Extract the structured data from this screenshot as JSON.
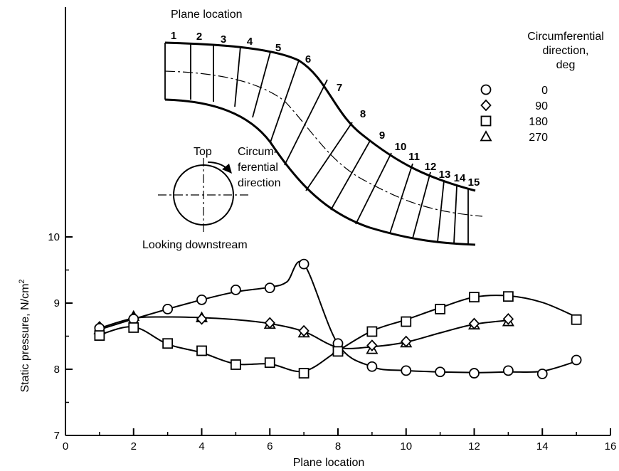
{
  "chart_data": {
    "type": "line",
    "xlabel": "Plane location",
    "ylabel": "Static pressure, N/cm",
    "ylabel_sup": "2",
    "xlim": [
      0,
      16
    ],
    "ylim": [
      7,
      10
    ],
    "x_ticks": [
      0,
      2,
      4,
      6,
      8,
      10,
      12,
      14,
      16
    ],
    "y_ticks": [
      7,
      8,
      9,
      10
    ],
    "grid": false,
    "legend_title": [
      "Circumferential",
      "direction,",
      "deg"
    ],
    "series": [
      {
        "name": "0",
        "marker": "circle",
        "x": [
          1,
          2,
          3,
          4,
          5,
          6,
          7,
          8,
          9,
          10,
          11,
          12,
          13,
          14,
          15
        ],
        "y": [
          8.62,
          8.76,
          8.91,
          9.05,
          9.2,
          9.23,
          9.59,
          8.39,
          8.04,
          7.98,
          7.96,
          7.94,
          7.98,
          7.93,
          8.14
        ]
      },
      {
        "name": "90",
        "marker": "diamond",
        "x": [
          1,
          2,
          4,
          6,
          7,
          8,
          9,
          10,
          12,
          13
        ],
        "y": [
          8.64,
          8.77,
          8.76,
          8.7,
          8.58,
          8.33,
          8.36,
          8.42,
          8.69,
          8.76
        ]
      },
      {
        "name": "180",
        "marker": "square",
        "x": [
          1,
          2,
          3,
          4,
          5,
          6,
          7,
          8,
          9,
          10,
          11,
          12,
          13,
          15
        ],
        "y": [
          8.51,
          8.63,
          8.39,
          8.28,
          8.07,
          8.1,
          7.94,
          8.27,
          8.57,
          8.72,
          8.91,
          9.09,
          9.1,
          8.75
        ]
      },
      {
        "name": "270",
        "marker": "triangle",
        "x": [
          1,
          2,
          4,
          6,
          7,
          8,
          9,
          10,
          12,
          13
        ],
        "y": [
          8.6,
          8.8,
          8.78,
          8.68,
          8.55,
          8.3,
          8.3,
          8.4,
          8.67,
          8.72
        ]
      }
    ],
    "curves": [
      {
        "x": [
          1,
          2,
          3,
          4,
          5,
          6,
          6.5,
          7,
          8,
          9,
          10,
          12,
          13,
          14,
          15
        ],
        "y": [
          8.6,
          8.76,
          8.91,
          9.05,
          9.17,
          9.24,
          9.32,
          9.59,
          8.38,
          8.04,
          7.98,
          7.95,
          7.96,
          7.97,
          8.12
        ]
      },
      {
        "x": [
          1,
          2,
          3,
          4,
          5,
          6,
          7,
          8,
          9,
          10,
          11,
          12,
          13
        ],
        "y": [
          8.62,
          8.77,
          8.79,
          8.78,
          8.75,
          8.69,
          8.57,
          8.33,
          8.34,
          8.41,
          8.55,
          8.68,
          8.74
        ]
      },
      {
        "x": [
          1,
          2,
          3,
          4,
          5,
          6,
          7,
          8,
          9,
          10,
          11,
          12,
          13,
          14,
          15
        ],
        "y": [
          8.52,
          8.64,
          8.38,
          8.25,
          8.08,
          8.08,
          7.97,
          8.28,
          8.58,
          8.75,
          8.93,
          9.09,
          9.11,
          9.01,
          8.79
        ]
      }
    ]
  },
  "inset": {
    "plane_location_label": "Plane location",
    "planes": [
      "1",
      "2",
      "3",
      "4",
      "5",
      "6",
      "7",
      "8",
      "9",
      "10",
      "11",
      "12",
      "13",
      "14",
      "15"
    ],
    "top_label": "Top",
    "direction_label": [
      "Circum-",
      "ferential",
      "direction"
    ],
    "looking_label": "Looking downstream"
  }
}
